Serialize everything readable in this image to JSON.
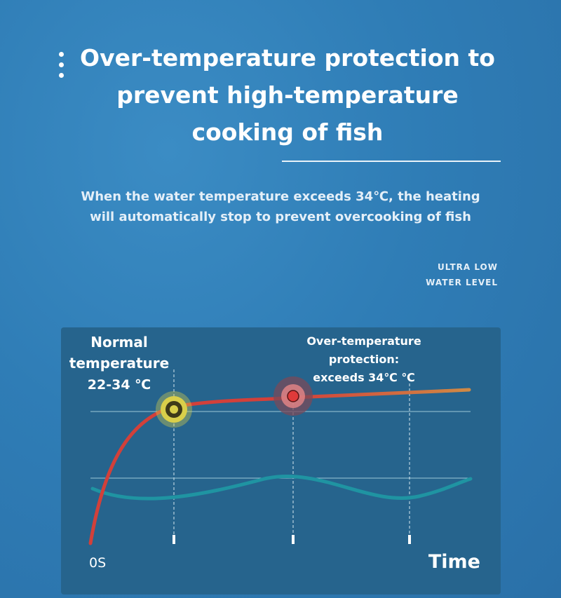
{
  "headline": {
    "lines": [
      "Over-temperature protection to",
      "prevent high-temperature",
      "cooking of fish"
    ]
  },
  "subtitle": {
    "lines": [
      "When the water temperature exceeds 34℃, the heating",
      "will automatically stop to prevent overcooking of fish"
    ]
  },
  "tag": {
    "lines": [
      "ULTRA LOW",
      "WATER LEVEL"
    ]
  },
  "diagram": {
    "normal_label": [
      "Normal",
      "temperature",
      "22-34 ℃"
    ],
    "over_label": [
      "Over-temperature",
      "protection:",
      "exceeds 34℃ ℃"
    ],
    "origin_label": "0S",
    "axis_label": "Time",
    "colors": {
      "temp_curve": "#d2403a",
      "over_curve": "#d08a45",
      "water_wave": "#1f94a2",
      "normal_marker": "#d9cf4a",
      "over_marker": "#e03a3a"
    }
  }
}
